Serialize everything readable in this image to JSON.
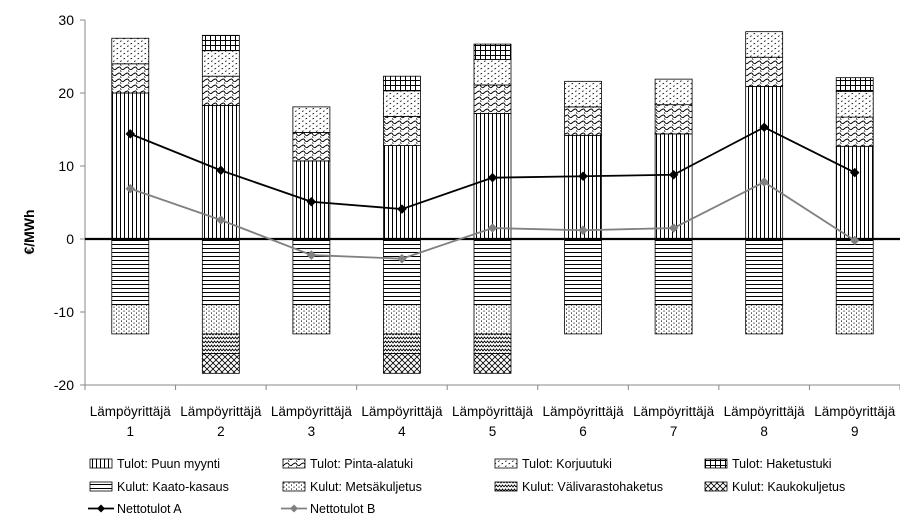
{
  "chart_data": {
    "type": "bar",
    "stacked": true,
    "ylabel": "€/MWh",
    "ylim": [
      -20,
      30
    ],
    "yticks": [
      -20,
      -10,
      0,
      10,
      20,
      30
    ],
    "grid": false,
    "legend_position": "bottom",
    "categories": [
      [
        "Lämpöyrittäjä",
        "1"
      ],
      [
        "Lämpöyrittäjä",
        "2"
      ],
      [
        "Lämpöyrittäjä",
        "3"
      ],
      [
        "Lämpöyrittäjä",
        "4"
      ],
      [
        "Lämpöyrittäjä",
        "5"
      ],
      [
        "Lämpöyrittäjä",
        "6"
      ],
      [
        "Lämpöyrittäjä",
        "7"
      ],
      [
        "Lämpöyrittäjä",
        "8"
      ],
      [
        "Lämpöyrittäjä",
        "9"
      ]
    ],
    "bar_series": [
      {
        "name": "Tulot: Puun myynti",
        "pattern": "vlines",
        "values": [
          20.0,
          18.3,
          10.7,
          12.8,
          17.2,
          14.2,
          14.4,
          20.9,
          12.7
        ]
      },
      {
        "name": "Tulot: Pinta-alatuki",
        "pattern": "waves",
        "values": [
          4.0,
          4.0,
          3.9,
          4.0,
          3.9,
          3.9,
          4.0,
          4.0,
          4.0
        ]
      },
      {
        "name": "Tulot: Korjuutuki",
        "pattern": "dots-sparse",
        "values": [
          3.5,
          3.5,
          3.5,
          3.5,
          3.5,
          3.5,
          3.5,
          3.5,
          3.5
        ]
      },
      {
        "name": "Tulot: Haketustuki",
        "pattern": "grid",
        "values": [
          0,
          2.1,
          0,
          2.0,
          2.1,
          0,
          0,
          0,
          1.9
        ]
      },
      {
        "name": "Kulut: Kaato-kasaus",
        "pattern": "hlines",
        "values": [
          -9.0,
          -9.0,
          -9.0,
          -9.0,
          -9.0,
          -9.0,
          -9.0,
          -9.0,
          -9.0
        ]
      },
      {
        "name": "Kulut: Metsäkuljetus",
        "pattern": "dots-dense",
        "values": [
          -4.0,
          -4.0,
          -4.0,
          -4.0,
          -4.0,
          -4.0,
          -4.0,
          -4.0,
          -4.0
        ]
      },
      {
        "name": "Kulut: Välivarastohaketus",
        "pattern": "zigzag",
        "values": [
          0,
          -2.7,
          0,
          -2.7,
          -2.7,
          0,
          0,
          0,
          0
        ]
      },
      {
        "name": "Kulut: Kaukokuljetus",
        "pattern": "diamonds",
        "values": [
          0,
          -2.7,
          0,
          -2.7,
          -2.7,
          0,
          0,
          0,
          0
        ]
      }
    ],
    "line_series": [
      {
        "name": "Nettotulot A",
        "color": "#000000",
        "marker": "diamond",
        "values": [
          14.4,
          9.4,
          5.1,
          4.1,
          8.4,
          8.6,
          8.8,
          15.3,
          9.1
        ]
      },
      {
        "name": "Nettotulot B",
        "color": "#808080",
        "marker": "diamond",
        "values": [
          6.9,
          2.6,
          -2.2,
          -2.7,
          1.5,
          1.2,
          1.5,
          7.8,
          -0.2
        ]
      }
    ]
  }
}
